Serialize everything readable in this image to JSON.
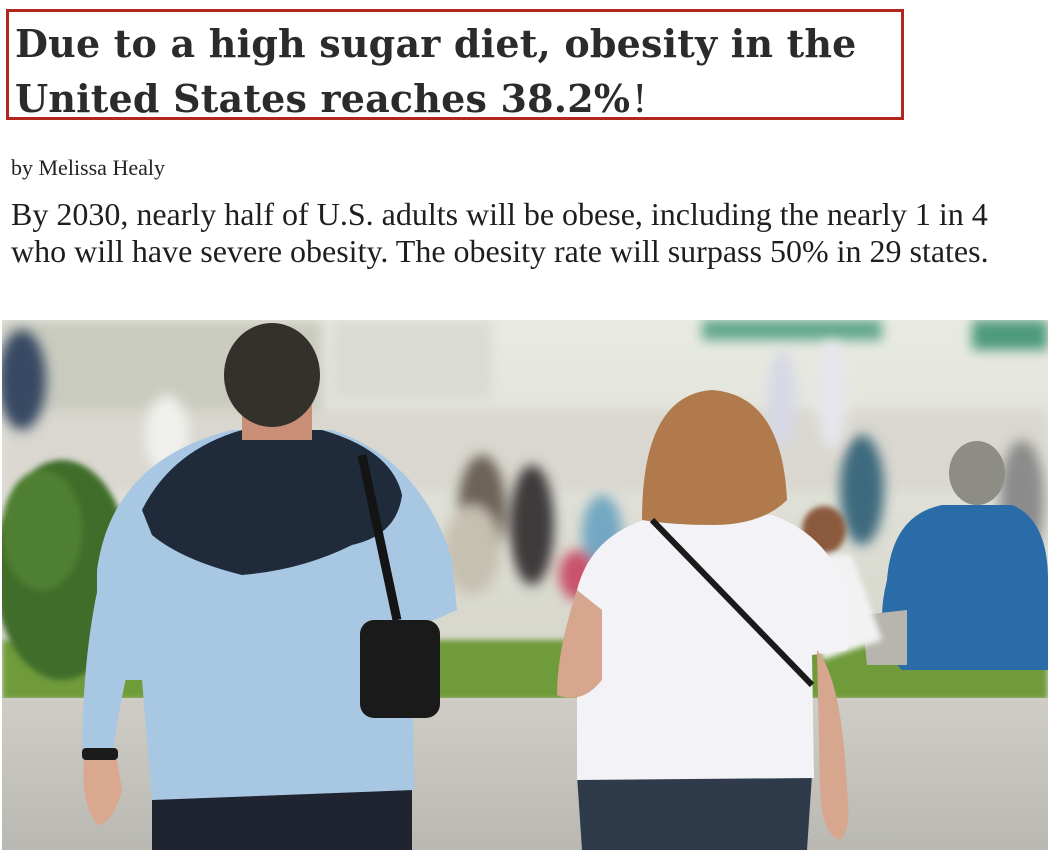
{
  "article": {
    "headline_line1": "Due to a high sugar diet, obesity in the",
    "headline_line2": "United States reaches 38.2%",
    "headline_punct": "!",
    "byline": "by Melissa Healy",
    "dek": "By 2030, nearly half of U.S. adults will be obese, including the nearly 1 in 4 who will have severe obesity. The obesity rate will surpass 50% in 29 states."
  },
  "colors": {
    "headline_border": "#b3261e",
    "headline_text": "#2b2b2b",
    "body_text": "#1e1e1e"
  },
  "photo": {
    "subject": "two people walking in a park seen from behind, crowd in background"
  }
}
